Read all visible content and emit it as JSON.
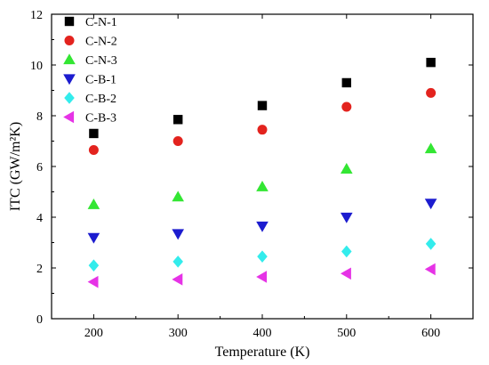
{
  "chart_data": {
    "type": "scatter",
    "title": "",
    "xlabel": "Temperature (K)",
    "ylabel": "ITC (GW/m²K)",
    "xlim": [
      150,
      650
    ],
    "ylim": [
      0,
      12
    ],
    "xticks": [
      200,
      300,
      400,
      500,
      600
    ],
    "yticks": [
      0,
      2,
      4,
      6,
      8,
      10,
      12
    ],
    "grid": false,
    "legend_position": "top-left",
    "x": [
      200,
      300,
      400,
      500,
      600
    ],
    "series": [
      {
        "name": "C-N-1",
        "marker": "square",
        "color": "#000000",
        "values": [
          7.3,
          7.85,
          8.4,
          9.3,
          10.1
        ]
      },
      {
        "name": "C-N-2",
        "marker": "circle",
        "color": "#e3231e",
        "values": [
          6.65,
          7.0,
          7.45,
          8.35,
          8.9
        ]
      },
      {
        "name": "C-N-3",
        "marker": "triangle-up",
        "color": "#33e633",
        "values": [
          4.5,
          4.8,
          5.2,
          5.9,
          6.7
        ]
      },
      {
        "name": "C-B-1",
        "marker": "triangle-down",
        "color": "#1c1ccf",
        "values": [
          3.2,
          3.35,
          3.65,
          4.0,
          4.55
        ]
      },
      {
        "name": "C-B-2",
        "marker": "diamond",
        "color": "#33ecec",
        "values": [
          2.1,
          2.25,
          2.45,
          2.65,
          2.95
        ]
      },
      {
        "name": "C-B-3",
        "marker": "triangle-left",
        "color": "#e633e6",
        "values": [
          1.45,
          1.55,
          1.65,
          1.78,
          1.95
        ]
      }
    ]
  }
}
